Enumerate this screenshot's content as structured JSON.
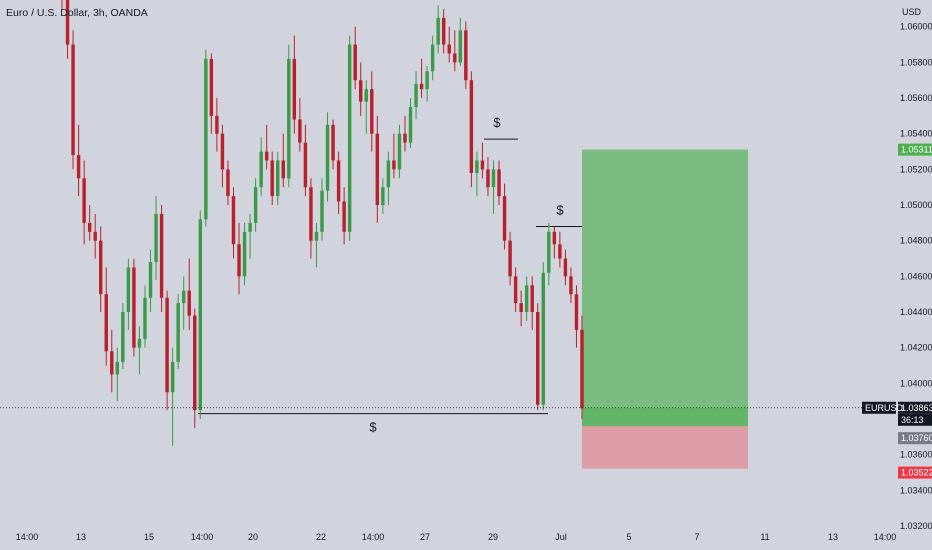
{
  "header": {
    "title": "Euro / U.S. Dollar, 3h, OANDA",
    "currency": "USD"
  },
  "price_axis": {
    "ticks": [
      "1.06000",
      "1.05800",
      "1.05600",
      "1.05400",
      "1.05200",
      "1.05000",
      "1.04800",
      "1.04600",
      "1.04400",
      "1.04200",
      "1.04000",
      "1.03800",
      "1.03600",
      "1.03400",
      "1.03200"
    ],
    "labels": {
      "tp": {
        "text": "1.05311",
        "color": "#4caf50",
        "value": 1.05311
      },
      "symbol": {
        "text": "EURUSD",
        "color": "#131722"
      },
      "current": {
        "text": "1.03863",
        "color": "#131722",
        "value": 1.03863
      },
      "countdown": {
        "text": "36:13",
        "color": "#131722"
      },
      "entry": {
        "text": "1.03760",
        "color": "#787b86",
        "value": 1.0376
      },
      "sl": {
        "text": "1.03522",
        "color": "#f23645",
        "value": 1.03522
      }
    }
  },
  "time_axis": [
    "14:00",
    "13",
    "15",
    "14:00",
    "20",
    "22",
    "14:00",
    "27",
    "29",
    "Jul",
    "5",
    "7",
    "11",
    "13",
    "14:00"
  ],
  "chart_data": {
    "type": "candlestick",
    "symbol": "EURUSD",
    "timeframe": "3h",
    "ylim": [
      1.032,
      1.0615
    ],
    "colors": {
      "up": "#26a69a",
      "down": "#b22833",
      "up_body": "#3a9a4a",
      "down_body": "#b8202e"
    },
    "candles": [
      [
        1.0651,
        1.0668,
        1.061,
        1.062
      ],
      [
        1.062,
        1.0628,
        1.0582,
        1.059
      ],
      [
        1.059,
        1.0598,
        1.052,
        1.0528
      ],
      [
        1.0528,
        1.0545,
        1.0505,
        1.0515
      ],
      [
        1.0515,
        1.0525,
        1.0478,
        1.049
      ],
      [
        1.049,
        1.05,
        1.048,
        1.0485
      ],
      [
        1.0485,
        1.0495,
        1.047,
        1.048
      ],
      [
        1.048,
        1.0488,
        1.044,
        1.045
      ],
      [
        1.045,
        1.0465,
        1.041,
        1.0418
      ],
      [
        1.0418,
        1.043,
        1.0395,
        1.0405
      ],
      [
        1.0405,
        1.042,
        1.039,
        1.0412
      ],
      [
        1.0412,
        1.0445,
        1.0408,
        1.044
      ],
      [
        1.044,
        1.047,
        1.043,
        1.0465
      ],
      [
        1.0465,
        1.047,
        1.0415,
        1.042
      ],
      [
        1.042,
        1.0432,
        1.0405,
        1.0425
      ],
      [
        1.0425,
        1.0455,
        1.042,
        1.0448
      ],
      [
        1.0448,
        1.0475,
        1.044,
        1.0468
      ],
      [
        1.0468,
        1.0505,
        1.0458,
        1.0495
      ],
      [
        1.0495,
        1.05,
        1.044,
        1.0448
      ],
      [
        1.0448,
        1.0452,
        1.0385,
        1.0395
      ],
      [
        1.0395,
        1.042,
        1.0365,
        1.0412
      ],
      [
        1.0412,
        1.045,
        1.0408,
        1.0445
      ],
      [
        1.0445,
        1.046,
        1.043,
        1.0452
      ],
      [
        1.0452,
        1.047,
        1.043,
        1.0438
      ],
      [
        1.0438,
        1.0442,
        1.0375,
        1.0385
      ],
      [
        1.0385,
        1.0497,
        1.038,
        1.0492
      ],
      [
        1.0492,
        1.0587,
        1.0488,
        1.0582
      ],
      [
        1.0582,
        1.0585,
        1.054,
        1.055
      ],
      [
        1.055,
        1.056,
        1.053,
        1.054
      ],
      [
        1.054,
        1.0545,
        1.051,
        1.052
      ],
      [
        1.052,
        1.0525,
        1.05,
        1.0505
      ],
      [
        1.0505,
        1.051,
        1.047,
        1.0478
      ],
      [
        1.0478,
        1.049,
        1.045,
        1.046
      ],
      [
        1.046,
        1.049,
        1.0455,
        1.0485
      ],
      [
        1.0485,
        1.0495,
        1.047,
        1.049
      ],
      [
        1.049,
        1.0515,
        1.0485,
        1.051
      ],
      [
        1.051,
        1.0538,
        1.0505,
        1.053
      ],
      [
        1.053,
        1.0545,
        1.052,
        1.0525
      ],
      [
        1.0525,
        1.053,
        1.05,
        1.0505
      ],
      [
        1.0505,
        1.053,
        1.05,
        1.0525
      ],
      [
        1.0525,
        1.054,
        1.051,
        1.0515
      ],
      [
        1.0515,
        1.059,
        1.051,
        1.0582
      ],
      [
        1.0582,
        1.0595,
        1.054,
        1.0548
      ],
      [
        1.0548,
        1.056,
        1.053,
        1.0535
      ],
      [
        1.0535,
        1.0545,
        1.0505,
        1.051
      ],
      [
        1.051,
        1.0515,
        1.047,
        1.048
      ],
      [
        1.048,
        1.049,
        1.0465,
        1.0485
      ],
      [
        1.0485,
        1.0515,
        1.048,
        1.0508
      ],
      [
        1.0508,
        1.0552,
        1.0502,
        1.0545
      ],
      [
        1.0545,
        1.0548,
        1.052,
        1.0525
      ],
      [
        1.0525,
        1.053,
        1.0495,
        1.0502
      ],
      [
        1.0502,
        1.051,
        1.0478,
        1.0485
      ],
      [
        1.0485,
        1.0595,
        1.048,
        1.059
      ],
      [
        1.059,
        1.06,
        1.0565,
        1.057
      ],
      [
        1.057,
        1.058,
        1.055,
        1.0558
      ],
      [
        1.0558,
        1.057,
        1.054,
        1.0565
      ],
      [
        1.0565,
        1.0575,
        1.053,
        1.054
      ],
      [
        1.054,
        1.055,
        1.049,
        1.05
      ],
      [
        1.05,
        1.0515,
        1.0495,
        1.051
      ],
      [
        1.051,
        1.053,
        1.05,
        1.0525
      ],
      [
        1.0525,
        1.054,
        1.0515,
        1.052
      ],
      [
        1.052,
        1.0545,
        1.0515,
        1.054
      ],
      [
        1.054,
        1.055,
        1.053,
        1.0535
      ],
      [
        1.0535,
        1.056,
        1.0532,
        1.0555
      ],
      [
        1.0555,
        1.0575,
        1.0548,
        1.0568
      ],
      [
        1.0568,
        1.0582,
        1.056,
        1.0565
      ],
      [
        1.0565,
        1.0578,
        1.0558,
        1.0575
      ],
      [
        1.0575,
        1.0595,
        1.057,
        1.059
      ],
      [
        1.059,
        1.0612,
        1.0585,
        1.0605
      ],
      [
        1.0605,
        1.061,
        1.0585,
        1.059
      ],
      [
        1.059,
        1.06,
        1.058,
        1.0585
      ],
      [
        1.0585,
        1.0598,
        1.0575,
        1.058
      ],
      [
        1.058,
        1.0605,
        1.0578,
        1.0598
      ],
      [
        1.0598,
        1.0603,
        1.0565,
        1.057
      ],
      [
        1.057,
        1.0575,
        1.051,
        1.0518
      ],
      [
        1.0518,
        1.053,
        1.0505,
        1.0525
      ],
      [
        1.0525,
        1.0535,
        1.0515,
        1.052
      ],
      [
        1.052,
        1.0527,
        1.0505,
        1.051
      ],
      [
        1.051,
        1.0525,
        1.0495,
        1.052
      ],
      [
        1.052,
        1.0525,
        1.05,
        1.0505
      ],
      [
        1.0505,
        1.0512,
        1.0475,
        1.048
      ],
      [
        1.048,
        1.0485,
        1.0455,
        1.046
      ],
      [
        1.046,
        1.0465,
        1.044,
        1.0445
      ],
      [
        1.0445,
        1.0452,
        1.0432,
        1.044
      ],
      [
        1.044,
        1.046,
        1.0435,
        1.0455
      ],
      [
        1.0455,
        1.046,
        1.043,
        1.044
      ],
      [
        1.044,
        1.0445,
        1.0385,
        1.0388
      ],
      [
        1.0388,
        1.0468,
        1.0385,
        1.0462
      ],
      [
        1.0462,
        1.049,
        1.0455,
        1.0485
      ],
      [
        1.0485,
        1.0488,
        1.047,
        1.0478
      ],
      [
        1.0478,
        1.0485,
        1.0465,
        1.047
      ],
      [
        1.047,
        1.0475,
        1.0455,
        1.046
      ],
      [
        1.046,
        1.0465,
        1.0445,
        1.045
      ],
      [
        1.045,
        1.0455,
        1.042,
        1.043
      ],
      [
        1.043,
        1.0438,
        1.038,
        1.0386
      ]
    ],
    "levels": [
      {
        "name": "sell-side liquidity",
        "price": 1.0383,
        "label": "$"
      },
      {
        "name": "buy-side liquidity 1",
        "price": 1.0537,
        "label": "$"
      },
      {
        "name": "buy-side liquidity 2",
        "price": 1.0488,
        "label": "$"
      }
    ],
    "position": {
      "type": "long",
      "entry": 1.0376,
      "target": 1.05311,
      "stop": 1.03522,
      "current": 1.03863,
      "target_color": "#4caf50",
      "stop_color": "#f23645"
    }
  }
}
